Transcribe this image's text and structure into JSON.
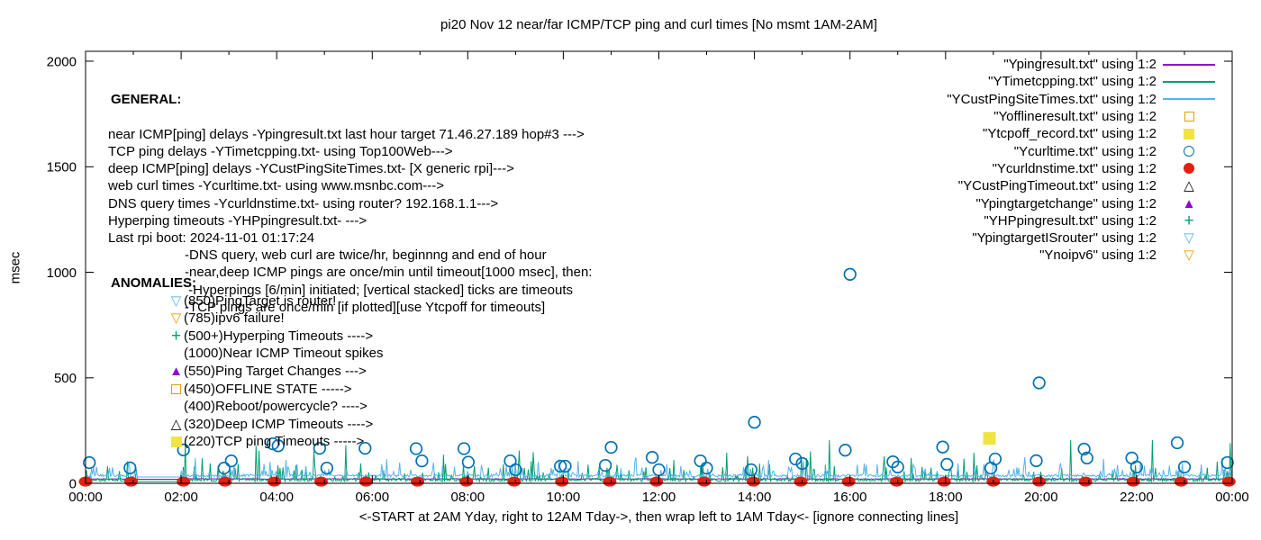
{
  "title": "pi20 Nov 12  near/far ICMP/TCP ping and curl times [No msmt 1AM-2AM]",
  "axes": {
    "ylabel": "msec",
    "xlabel": "<-START at 2AM Yday, right to 12AM Tday->, then wrap left to 1AM Tday<- [ignore connecting lines]",
    "ytick_labels": [
      "0",
      "500",
      "1000",
      "1500",
      "2000"
    ],
    "ytick_values": [
      0,
      500,
      1000,
      1500,
      2000
    ],
    "xtick_labels": [
      "00:00",
      "02:00",
      "04:00",
      "06:00",
      "08:00",
      "10:00",
      "12:00",
      "14:00",
      "16:00",
      "18:00",
      "20:00",
      "22:00",
      "00:00"
    ],
    "xtick_hours": [
      0,
      2,
      4,
      6,
      8,
      10,
      12,
      14,
      16,
      18,
      20,
      22,
      24
    ],
    "minor_xtick_every_hours": 1
  },
  "general": {
    "header": "GENERAL:",
    "lines": [
      {
        "text": "near ICMP[ping] delays -Ypingresult.txt last hour target 71.46.27.189 hop#3 --->",
        "indent": false
      },
      {
        "text": "TCP ping delays -YTimetcpping.txt- using Top100Web--->",
        "indent": false
      },
      {
        "text": "deep ICMP[ping] delays -YCustPingSiteTimes.txt- [X generic rpi]--->",
        "indent": false
      },
      {
        "text": "web curl times -Ycurltime.txt- using www.msnbc.com--->",
        "indent": false
      },
      {
        "text": "DNS query times -Ycurldnstime.txt- using router? 192.168.1.1--->",
        "indent": false
      },
      {
        "text": "Hyperping timeouts -YHPpingresult.txt- --->",
        "indent": false
      },
      {
        "text": "Last rpi boot: 2024-11-01 01:17:24",
        "indent": false
      },
      {
        "text": "-DNS query, web curl are twice/hr, beginnng and end of hour",
        "indent": true
      },
      {
        "text": "-near,deep ICMP pings are once/min until timeout[1000 msec], then:",
        "indent": true
      },
      {
        "text": " -Hyperpings [6/min] initiated; [vertical stacked] ticks are timeouts",
        "indent": true
      },
      {
        "text": "-TCP pings are once/min [if plotted][use Ytcpoff for timeouts]",
        "indent": true
      }
    ]
  },
  "anomalies": {
    "header": "ANOMALIES:",
    "items": [
      {
        "marker": "triangle-down-open",
        "color": "#56b4e9",
        "label": "(850)PingTarget is router!"
      },
      {
        "marker": "triangle-down-open",
        "color": "#e69f00",
        "label": "(785)ipv6 failure!"
      },
      {
        "marker": "plus",
        "color": "#009e73",
        "label": "(500+)Hyperping Timeouts ---->"
      },
      {
        "marker": null,
        "color": null,
        "label": "(1000)Near ICMP Timeout spikes"
      },
      {
        "marker": "triangle-up-filled",
        "color": "#9400d3",
        "label": "(550)Ping Target Changes --->"
      },
      {
        "marker": "square-open",
        "color": "#e69f00",
        "label": "(450)OFFLINE STATE ----->"
      },
      {
        "marker": null,
        "color": null,
        "label": "(400)Reboot/powercycle? ---->"
      },
      {
        "marker": "triangle-up-open",
        "color": "#000000",
        "label": "(320)Deep ICMP Timeouts ---->"
      },
      {
        "marker": "square-filled",
        "color": "#f0e442",
        "label": "(220)TCP ping Timeouts ----->"
      }
    ]
  },
  "legend": {
    "items": [
      {
        "label": "\"Ypingresult.txt\" using 1:2",
        "marker": "line",
        "color": "#9400d3"
      },
      {
        "label": "\"YTimetcpping.txt\" using 1:2",
        "marker": "line",
        "color": "#009e73"
      },
      {
        "label": "\"YCustPingSiteTimes.txt\" using 1:2",
        "marker": "line",
        "color": "#56b4e9"
      },
      {
        "label": "\"Yofflineresult.txt\" using 1:2",
        "marker": "square-open",
        "color": "#e69f00"
      },
      {
        "label": "\"Ytcpoff_record.txt\" using 1:2",
        "marker": "square-filled",
        "color": "#f0e442"
      },
      {
        "label": "\"Ycurltime.txt\" using 1:2",
        "marker": "circle-open",
        "color": "#0072b2"
      },
      {
        "label": "\"Ycurldnstime.txt\" using 1:2",
        "marker": "circle-filled",
        "color": "#e51e10"
      },
      {
        "label": "\"YCustPingTimeout.txt\" using 1:2",
        "marker": "triangle-up-open",
        "color": "#000000"
      },
      {
        "label": "\"Ypingtargetchange\" using 1:2",
        "marker": "triangle-up-filled",
        "color": "#9400d3"
      },
      {
        "label": "\"YHPpingresult.txt\" using 1:2",
        "marker": "plus",
        "color": "#009e73"
      },
      {
        "label": "\"YpingtargetISrouter\" using 1:2",
        "marker": "triangle-down-open",
        "color": "#56b4e9"
      },
      {
        "label": "\"Ynoipv6\" using 1:2",
        "marker": "triangle-down-open",
        "color": "#e69f00"
      }
    ]
  },
  "chart_data": {
    "type": "line+scatter",
    "x_unit": "hours of day",
    "x_range": [
      0,
      24
    ],
    "y_range": [
      0,
      2000
    ],
    "grid": false,
    "no_measurement_gap_hours": [
      1.07,
      2.0
    ],
    "noise_seed": 7,
    "series": [
      {
        "name": "Ypingresult.txt",
        "style": "line",
        "color": "#9400d3",
        "baseline_msec": 19,
        "jitter_msec": 3
      },
      {
        "name": "YTimetcpping.txt",
        "style": "noisy-line",
        "color": "#009e73",
        "baseline_msec": 9,
        "jitter_msec": 16,
        "spike_prob": 0.1,
        "spike_msec": [
          30,
          95
        ],
        "rare_spike_prob": 0.012,
        "rare_spike_msec": [
          95,
          165
        ],
        "notable_spikes": [
          [
            0.03,
            62
          ],
          [
            2.08,
            185
          ],
          [
            3.56,
            178
          ],
          [
            5.44,
            180
          ],
          [
            7.5,
            135
          ],
          [
            9.32,
            105
          ],
          [
            12.32,
            110
          ],
          [
            13.42,
            145
          ],
          [
            15.56,
            205
          ],
          [
            17.28,
            120
          ],
          [
            18.6,
            145
          ],
          [
            20.62,
            205
          ],
          [
            22.32,
            205
          ],
          [
            23.95,
            190
          ]
        ]
      },
      {
        "name": "YCustPingSiteTimes.txt",
        "style": "noisy-line",
        "color": "#56b4e9",
        "baseline_msec": 30,
        "jitter_msec": 12,
        "spike_prob": 0.13,
        "spike_msec": [
          40,
          95
        ],
        "rare_spike_prob": 0.008,
        "rare_spike_msec": [
          95,
          125
        ],
        "notable_spikes": [
          [
            2.3,
            120
          ],
          [
            4.2,
            110
          ],
          [
            6.3,
            115
          ],
          [
            10.3,
            105
          ],
          [
            14.3,
            110
          ],
          [
            21.3,
            115
          ]
        ]
      },
      {
        "name": "Ytcpoff_record.txt",
        "style": "scatter-square-filled",
        "color": "#f0e442",
        "points": [
          [
            18.92,
            213
          ]
        ]
      },
      {
        "name": "Ycurltime.txt",
        "style": "scatter-circle-open",
        "color": "#0072b2",
        "points": [
          [
            0.08,
            98
          ],
          [
            0.93,
            73
          ],
          [
            2.05,
            158
          ],
          [
            2.9,
            72
          ],
          [
            3.05,
            106
          ],
          [
            3.92,
            187
          ],
          [
            4.03,
            178
          ],
          [
            4.9,
            166
          ],
          [
            5.05,
            72
          ],
          [
            5.85,
            166
          ],
          [
            6.92,
            164
          ],
          [
            7.04,
            106
          ],
          [
            7.92,
            164
          ],
          [
            8.01,
            100
          ],
          [
            8.89,
            106
          ],
          [
            9.0,
            64
          ],
          [
            9.94,
            81
          ],
          [
            10.04,
            81
          ],
          [
            10.88,
            85
          ],
          [
            11.0,
            170
          ],
          [
            11.86,
            123
          ],
          [
            12.0,
            64
          ],
          [
            12.87,
            106
          ],
          [
            13.0,
            72
          ],
          [
            13.93,
            64
          ],
          [
            14.0,
            289
          ],
          [
            14.86,
            115
          ],
          [
            15.0,
            94
          ],
          [
            15.9,
            157
          ],
          [
            16.0,
            990
          ],
          [
            16.9,
            102
          ],
          [
            17.0,
            77
          ],
          [
            17.94,
            172
          ],
          [
            18.03,
            90
          ],
          [
            18.95,
            72
          ],
          [
            19.04,
            115
          ],
          [
            19.9,
            107
          ],
          [
            19.96,
            476
          ],
          [
            20.9,
            162
          ],
          [
            20.96,
            120
          ],
          [
            21.9,
            120
          ],
          [
            22.0,
            77
          ],
          [
            22.85,
            192
          ],
          [
            23.0,
            77
          ],
          [
            23.9,
            98
          ]
        ]
      },
      {
        "name": "Ycurldnstime.txt",
        "style": "scatter-dot-filled",
        "color": "#e51e10",
        "value_msec": 8,
        "times": [
          0.0,
          0.95,
          2.05,
          2.92,
          3.95,
          4.93,
          5.87,
          6.95,
          7.97,
          8.97,
          9.97,
          10.97,
          11.95,
          12.95,
          13.98,
          14.97,
          15.97,
          16.98,
          17.97,
          19.0,
          19.96,
          20.93,
          21.93,
          22.93,
          23.93
        ]
      }
    ]
  }
}
